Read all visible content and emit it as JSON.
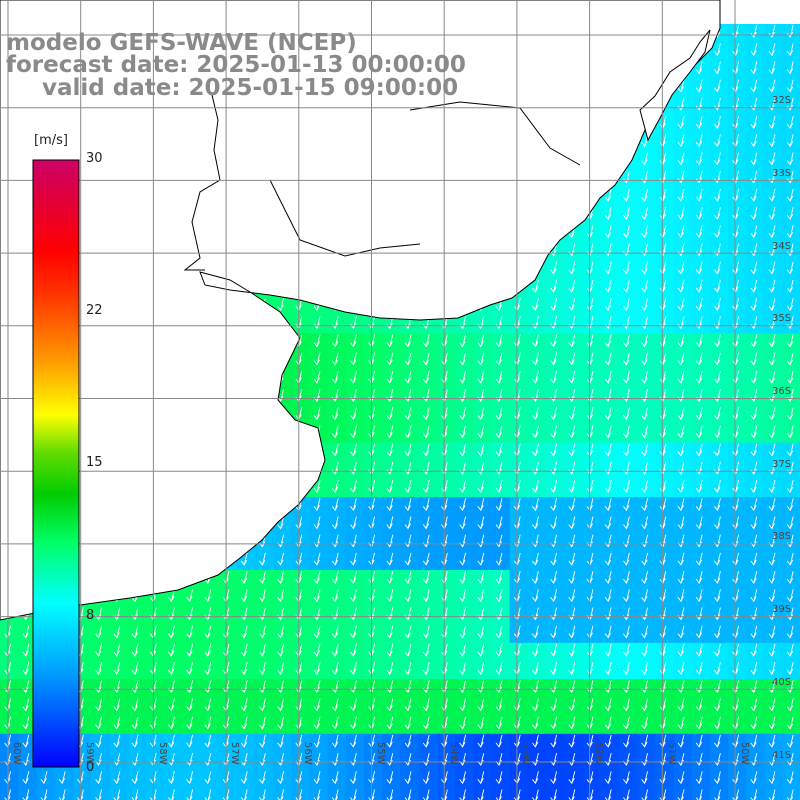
{
  "header": {
    "model": "modelo GEFS-WAVE (NCEP)",
    "forecast": "forecast date: 2025-01-13 00:00:00",
    "valid": "valid date: 2025-01-15 09:00:00"
  },
  "colorbar": {
    "unit": "[m/s]",
    "ticks": [
      "30",
      "22",
      "15",
      "8",
      "0"
    ],
    "tick_values": [
      30,
      22,
      15,
      8,
      0
    ],
    "min": 0,
    "max": 30,
    "colors": [
      "#0000ff",
      "#0099ff",
      "#00ffff",
      "#00ff66",
      "#00cc00",
      "#66dd00",
      "#ffff00",
      "#ff9900",
      "#ff3300",
      "#ff0000",
      "#cc0066"
    ]
  },
  "map": {
    "lat_labels": [
      "32S",
      "33S",
      "34S",
      "35S",
      "36S",
      "37S",
      "38S",
      "39S",
      "40S",
      "41S"
    ],
    "lon_labels": [
      "60W",
      "59W",
      "58W",
      "57W",
      "56W",
      "55W",
      "54W",
      "53W",
      "52W",
      "51W",
      "50W"
    ],
    "land_color": "#ffffff",
    "coast_color": "#000000",
    "grid_color": "#888888",
    "arrow_color": "#ffffff",
    "wind_direction": "from north-northeast",
    "wind_speed_range_ms": [
      2,
      12
    ]
  }
}
